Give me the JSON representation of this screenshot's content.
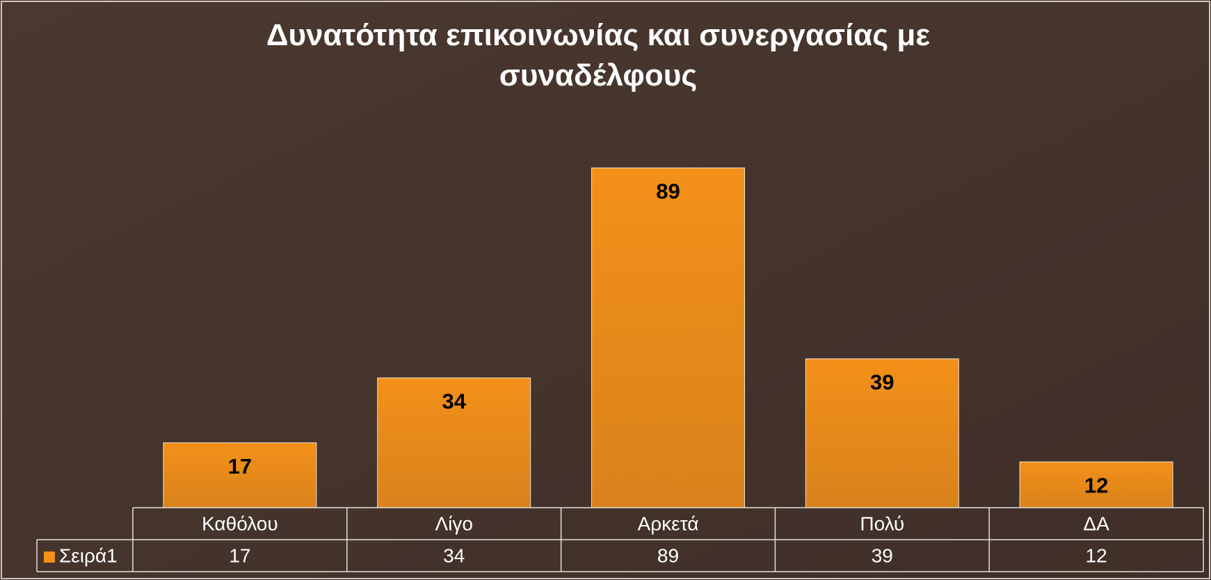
{
  "chart_data": {
    "type": "bar",
    "title": "Δυνατότητα επικοινωνίας και συνεργασίας με συναδέλφους",
    "categories": [
      "Καθόλου",
      "Λίγο",
      "Αρκετά",
      "Πολύ",
      "ΔΑ"
    ],
    "series": [
      {
        "name": "Σειρά1",
        "color": "#f39019",
        "values": [
          17,
          34,
          89,
          39,
          12
        ]
      }
    ]
  }
}
